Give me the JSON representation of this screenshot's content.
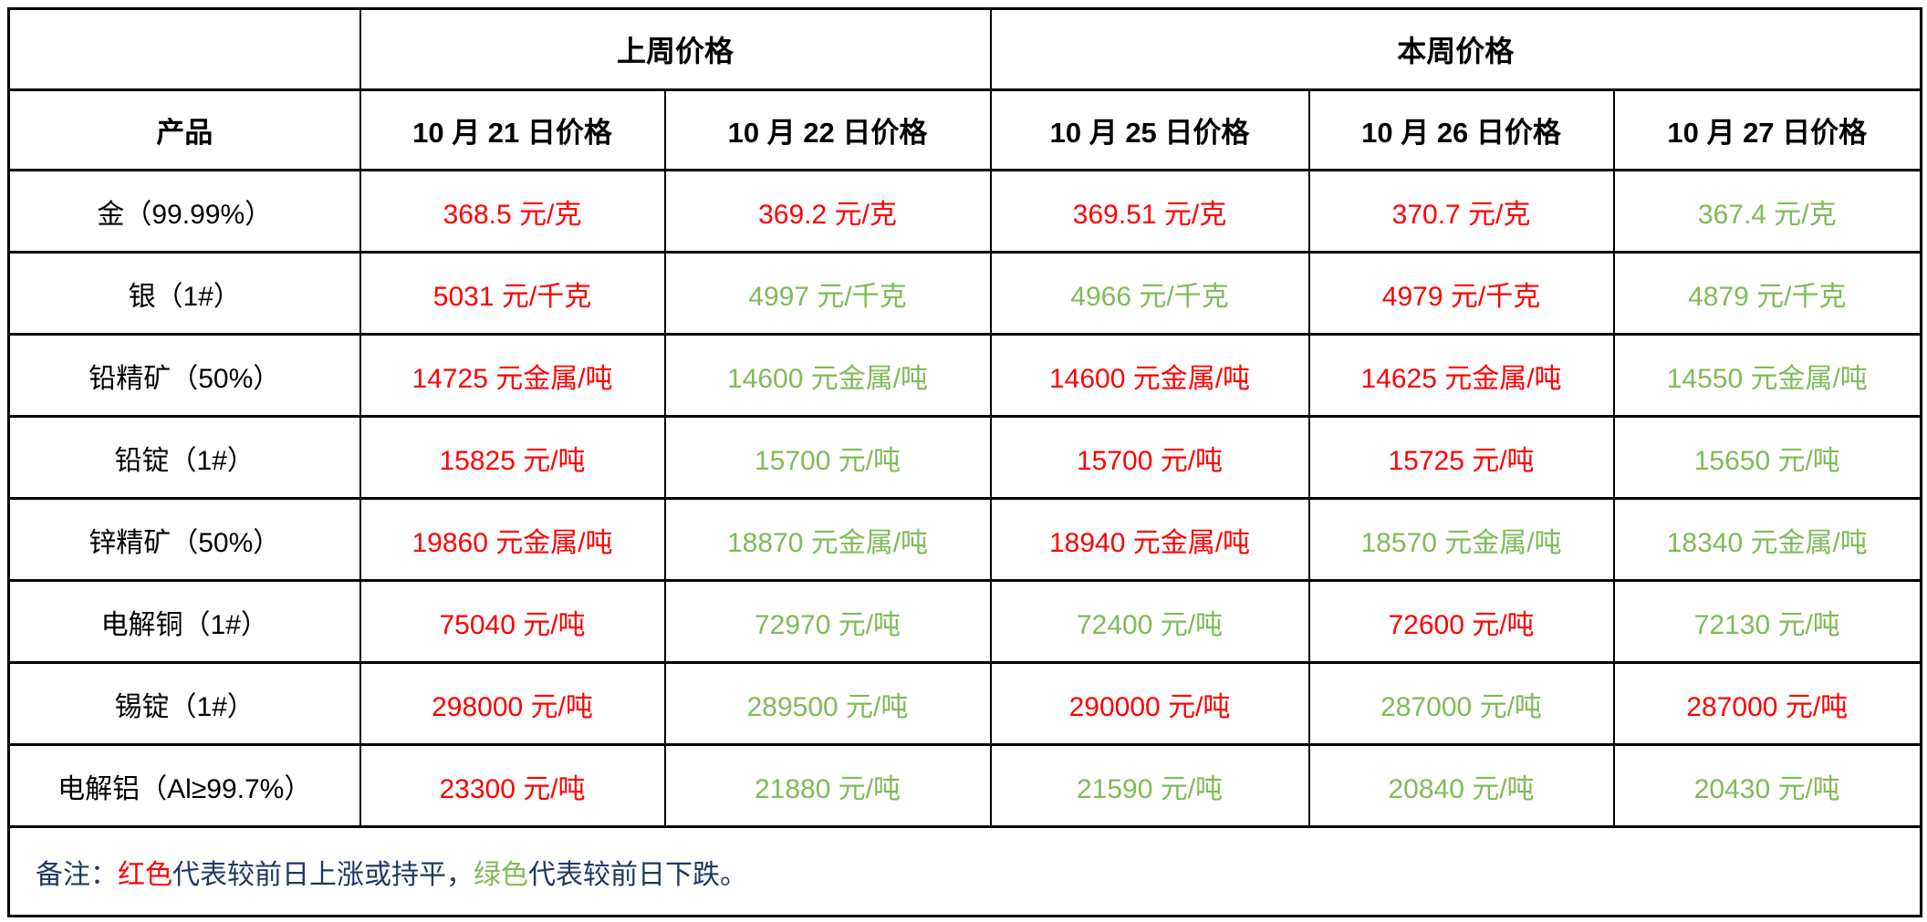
{
  "colors": {
    "up_red": "#ff0000",
    "down_green": "#7ebb58",
    "note_navy": "#1f3864",
    "border": "#000000",
    "background": "#ffffff"
  },
  "table": {
    "group_headers": [
      {
        "label": "上周价格",
        "colspan": "2"
      },
      {
        "label": "本周价格",
        "colspan": "3"
      }
    ],
    "column_headers": [
      "产品",
      "10 月 21 日价格",
      "10 月 22 日价格",
      "10 月 25 日价格",
      "10 月 26 日价格",
      "10 月 27 日价格"
    ],
    "rows": [
      {
        "product": "金（99.99%）",
        "prices": [
          {
            "text": "368.5 元/克",
            "trend": "up"
          },
          {
            "text": "369.2 元/克",
            "trend": "up"
          },
          {
            "text": "369.51 元/克",
            "trend": "up"
          },
          {
            "text": "370.7 元/克",
            "trend": "up"
          },
          {
            "text": "367.4 元/克",
            "trend": "down"
          }
        ]
      },
      {
        "product": "银（1#）",
        "prices": [
          {
            "text": "5031 元/千克",
            "trend": "up"
          },
          {
            "text": "4997 元/千克",
            "trend": "down"
          },
          {
            "text": "4966 元/千克",
            "trend": "down"
          },
          {
            "text": "4979 元/千克",
            "trend": "up"
          },
          {
            "text": "4879 元/千克",
            "trend": "down"
          }
        ]
      },
      {
        "product": "铅精矿（50%）",
        "prices": [
          {
            "text": "14725 元金属/吨",
            "trend": "up"
          },
          {
            "text": "14600 元金属/吨",
            "trend": "down"
          },
          {
            "text": "14600 元金属/吨",
            "trend": "up"
          },
          {
            "text": "14625 元金属/吨",
            "trend": "up"
          },
          {
            "text": "14550 元金属/吨",
            "trend": "down"
          }
        ]
      },
      {
        "product": "铅锭（1#）",
        "prices": [
          {
            "text": "15825 元/吨",
            "trend": "up"
          },
          {
            "text": "15700 元/吨",
            "trend": "down"
          },
          {
            "text": "15700 元/吨",
            "trend": "up"
          },
          {
            "text": "15725 元/吨",
            "trend": "up"
          },
          {
            "text": "15650 元/吨",
            "trend": "down"
          }
        ]
      },
      {
        "product": "锌精矿（50%）",
        "prices": [
          {
            "text": "19860 元金属/吨",
            "trend": "up"
          },
          {
            "text": "18870 元金属/吨",
            "trend": "down"
          },
          {
            "text": "18940 元金属/吨",
            "trend": "up"
          },
          {
            "text": "18570 元金属/吨",
            "trend": "down"
          },
          {
            "text": "18340 元金属/吨",
            "trend": "down"
          }
        ]
      },
      {
        "product": "电解铜（1#）",
        "prices": [
          {
            "text": "75040 元/吨",
            "trend": "up"
          },
          {
            "text": "72970 元/吨",
            "trend": "down"
          },
          {
            "text": "72400 元/吨",
            "trend": "down"
          },
          {
            "text": "72600 元/吨",
            "trend": "up"
          },
          {
            "text": "72130 元/吨",
            "trend": "down"
          }
        ]
      },
      {
        "product": "锡锭（1#）",
        "prices": [
          {
            "text": "298000 元/吨",
            "trend": "up"
          },
          {
            "text": "289500 元/吨",
            "trend": "down"
          },
          {
            "text": "290000 元/吨",
            "trend": "up"
          },
          {
            "text": "287000 元/吨",
            "trend": "down"
          },
          {
            "text": "287000 元/吨",
            "trend": "up"
          }
        ]
      },
      {
        "product": "电解铝（Al≥99.7%）",
        "prices": [
          {
            "text": "23300 元/吨",
            "trend": "up"
          },
          {
            "text": "21880 元/吨",
            "trend": "down"
          },
          {
            "text": "21590 元/吨",
            "trend": "down"
          },
          {
            "text": "20840 元/吨",
            "trend": "down"
          },
          {
            "text": "20430 元/吨",
            "trend": "down"
          }
        ]
      }
    ],
    "note": {
      "segments": [
        {
          "text": "备注：",
          "color": "navy"
        },
        {
          "text": "红色",
          "color": "red"
        },
        {
          "text": "代表较前日上涨或持平，",
          "color": "navy"
        },
        {
          "text": "绿色",
          "color": "green"
        },
        {
          "text": "代表较前日下跌。",
          "color": "navy"
        }
      ]
    }
  }
}
